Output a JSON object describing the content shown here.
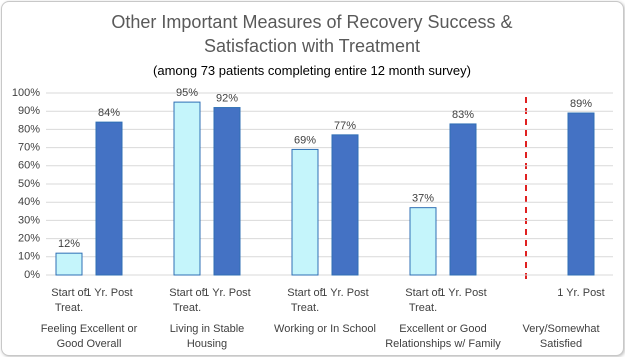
{
  "chart_data": {
    "type": "bar",
    "title": "Other Important Measures of Recovery Success & Satisfaction with Treatment",
    "subtitle": "(among 73 patients completing entire 12 month survey)",
    "categories": [
      "Feeling Excellent or Good Overall",
      "Living in Stable Housing",
      "Working or In School",
      "Excellent or Good Relationships w/ Family",
      "Very/Somewhat Satisfied"
    ],
    "series": [
      {
        "name": "Start of Treat.",
        "color": "#c5f5fb",
        "values": [
          12,
          95,
          69,
          37,
          null
        ],
        "value_labels": [
          "12%",
          "95%",
          "69%",
          "37%",
          null
        ]
      },
      {
        "name": "1 Yr. Post",
        "color": "#4472c4",
        "values": [
          84,
          92,
          77,
          83,
          89
        ],
        "value_labels": [
          "84%",
          "92%",
          "77%",
          "83%",
          "89%"
        ]
      }
    ],
    "ylim": [
      0,
      100
    ],
    "yticks": [
      {
        "value": 0,
        "label": "0%"
      },
      {
        "value": 10,
        "label": "10%"
      },
      {
        "value": 20,
        "label": "20%"
      },
      {
        "value": 30,
        "label": "30%"
      },
      {
        "value": 40,
        "label": "40%"
      },
      {
        "value": 50,
        "label": "50%"
      },
      {
        "value": 60,
        "label": "60%"
      },
      {
        "value": 70,
        "label": "70%"
      },
      {
        "value": 80,
        "label": "80%"
      },
      {
        "value": 90,
        "label": "90%"
      },
      {
        "value": 100,
        "label": "100%"
      }
    ],
    "grid": true
  }
}
